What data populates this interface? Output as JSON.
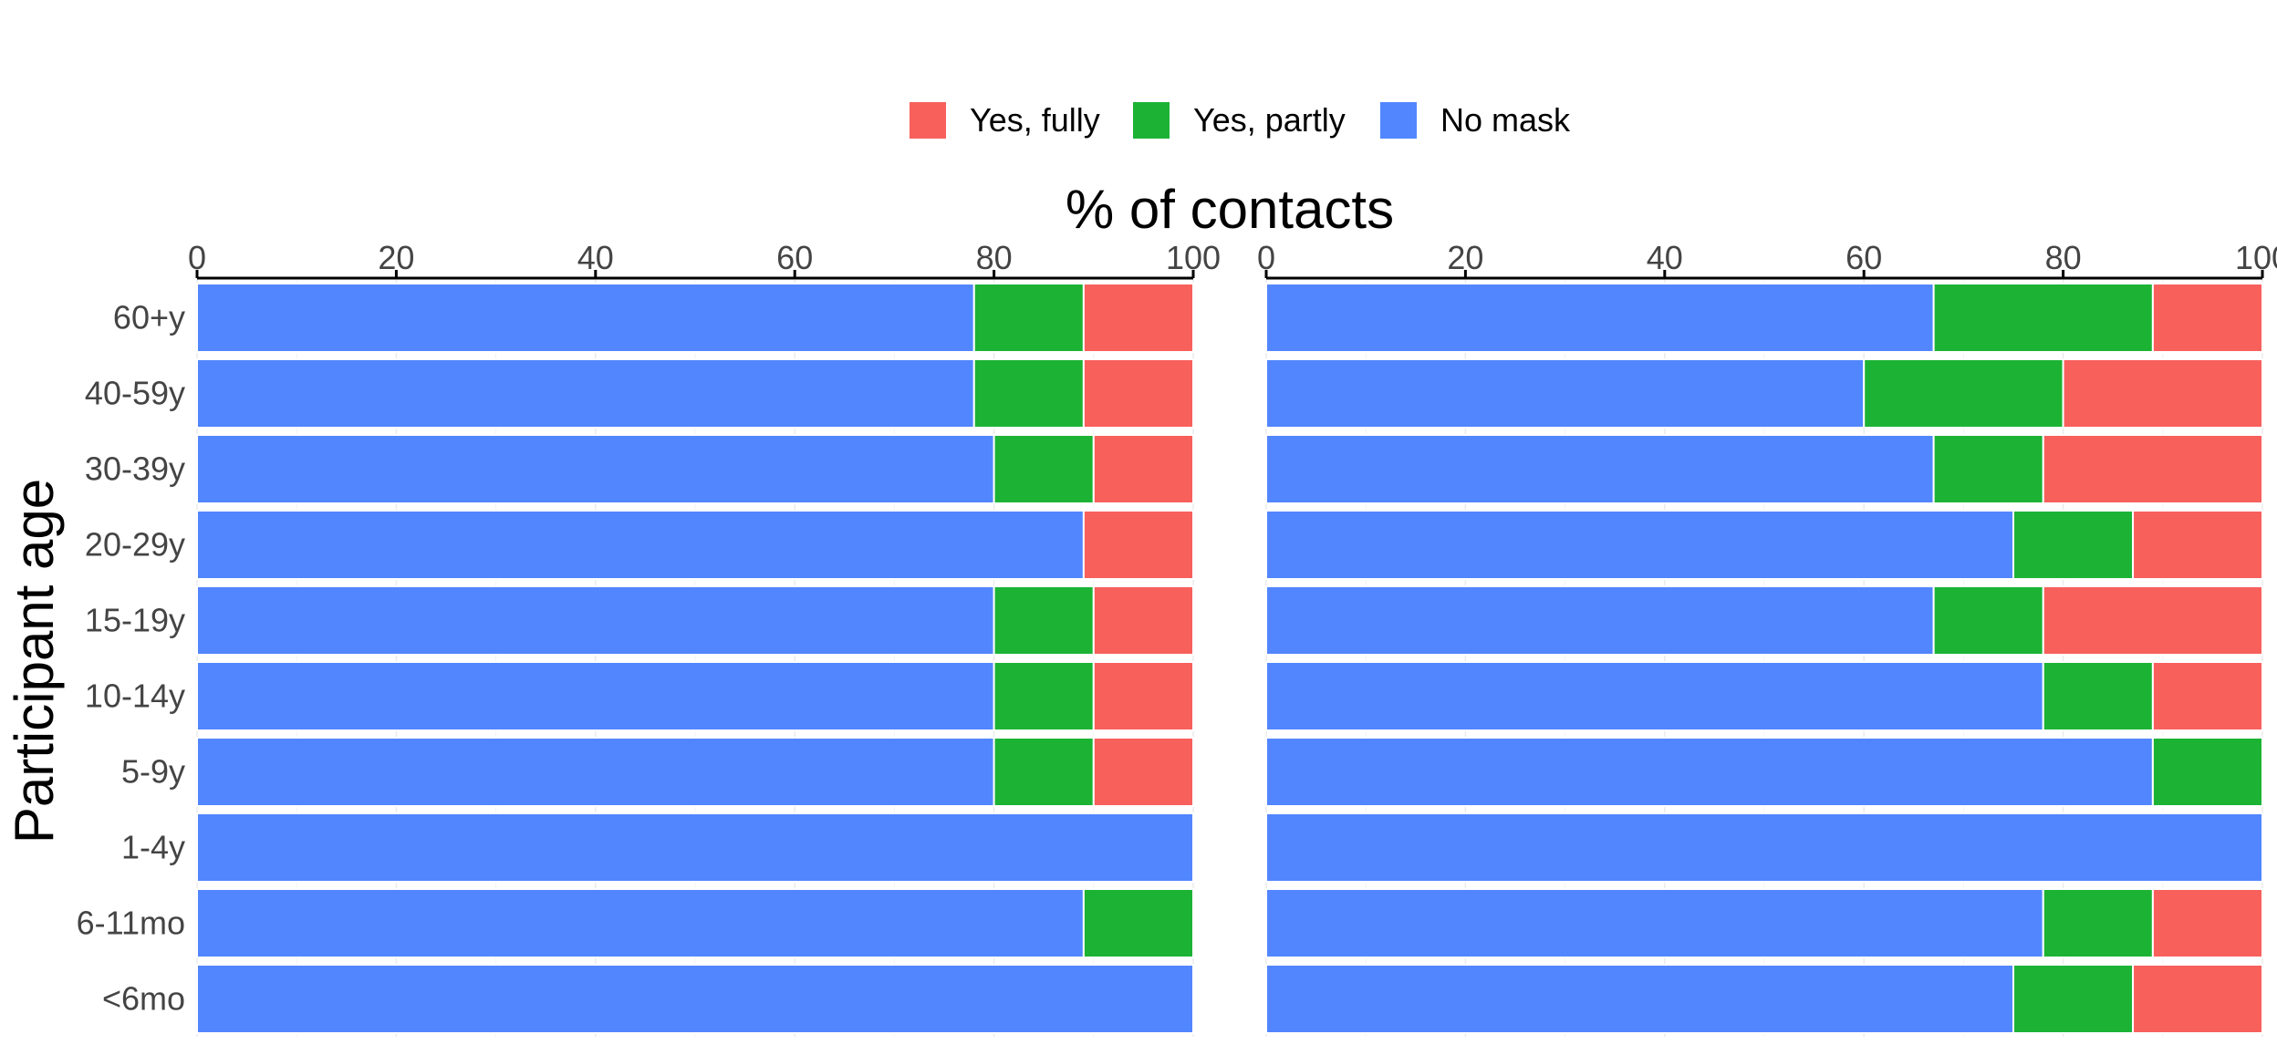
{
  "chart_data": {
    "type": "bar",
    "orientation": "horizontal",
    "stacked": true,
    "xlabel": "% of contacts",
    "ylabel": "Participant age",
    "xlim": [
      0,
      100
    ],
    "x_ticks": [
      "0",
      "20",
      "40",
      "60",
      "80",
      "100"
    ],
    "x_axis_position": "top",
    "legend_position": "top",
    "grid": false,
    "categories": [
      "60+y",
      "40-59y",
      "30-39y",
      "20-29y",
      "15-19y",
      "10-14y",
      "5-9y",
      "1-4y",
      "6-11mo",
      "<6mo"
    ],
    "legend": [
      {
        "name": "Yes, fully",
        "color": "#F8605C"
      },
      {
        "name": "Yes, partly",
        "color": "#1CB335"
      },
      {
        "name": "No mask",
        "color": "#5286FF"
      }
    ],
    "panels": [
      {
        "series": [
          {
            "name": "No mask",
            "color": "#5286FF",
            "values": [
              78,
              78,
              80,
              89,
              80,
              80,
              80,
              100,
              89,
              100
            ]
          },
          {
            "name": "Yes, partly",
            "color": "#1CB335",
            "values": [
              11,
              11,
              10,
              0,
              10,
              10,
              10,
              0,
              11,
              0
            ]
          },
          {
            "name": "Yes, fully",
            "color": "#F8605C",
            "values": [
              11,
              11,
              10,
              11,
              10,
              10,
              10,
              0,
              0,
              0
            ]
          }
        ]
      },
      {
        "series": [
          {
            "name": "No mask",
            "color": "#5286FF",
            "values": [
              67,
              60,
              67,
              75,
              67,
              78,
              89,
              100,
              78,
              75
            ]
          },
          {
            "name": "Yes, partly",
            "color": "#1CB335",
            "values": [
              22,
              20,
              11,
              12,
              11,
              11,
              11,
              0,
              11,
              12
            ]
          },
          {
            "name": "Yes, fully",
            "color": "#F8605C",
            "values": [
              11,
              20,
              22,
              13,
              22,
              11,
              0,
              0,
              11,
              13
            ]
          }
        ]
      }
    ]
  }
}
